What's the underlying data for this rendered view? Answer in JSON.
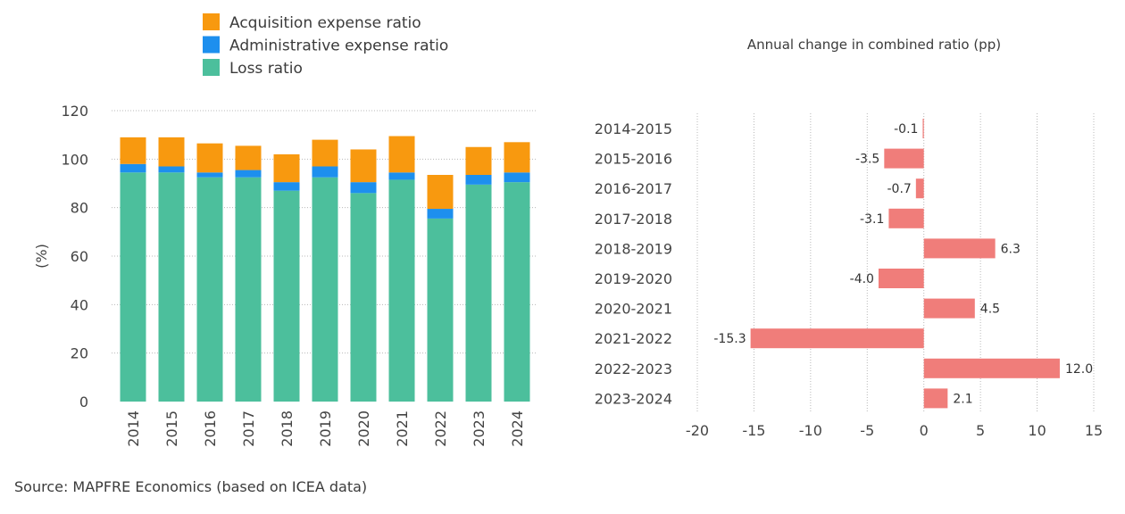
{
  "source_note": "Source: MAPFRE Economics (based on ICEA data)",
  "colors": {
    "acquisition": "#F8990F",
    "administrative": "#1D8FEE",
    "loss": "#4CBF9C",
    "change_bar": "#F07D7A"
  },
  "chart_data": [
    {
      "type": "bar",
      "stacked": true,
      "title": "",
      "xlabel": "",
      "ylabel": "(%)",
      "ylim": [
        0,
        120
      ],
      "yticks": [
        "0",
        "20",
        "40",
        "60",
        "80",
        "100",
        "120"
      ],
      "grid": true,
      "legend_position": "top-left",
      "categories": [
        "2014",
        "2015",
        "2016",
        "2017",
        "2018",
        "2019",
        "2020",
        "2021",
        "2022",
        "2023",
        "2024"
      ],
      "series": [
        {
          "name": "Loss ratio",
          "color_key": "loss",
          "values": [
            94.5,
            94.5,
            92.5,
            92.5,
            87,
            92.5,
            86,
            91.5,
            75.5,
            89.5,
            90.5
          ]
        },
        {
          "name": "Administrative expense ratio",
          "color_key": "administrative",
          "values": [
            3.5,
            2.5,
            2,
            3,
            3.5,
            4.5,
            4.5,
            3,
            4,
            4,
            4
          ]
        },
        {
          "name": "Acquisition expense ratio",
          "color_key": "acquisition",
          "values": [
            11,
            12,
            12,
            10,
            11.5,
            11,
            13.5,
            15,
            14,
            11.5,
            12.5
          ]
        }
      ],
      "legend_order": [
        "Acquisition expense ratio",
        "Administrative expense ratio",
        "Loss ratio"
      ]
    },
    {
      "type": "bar",
      "orientation": "horizontal",
      "title": "Annual change in combined ratio (pp)",
      "xlabel": "",
      "ylabel": "",
      "xlim": [
        -20,
        15
      ],
      "xticks": [
        "-20",
        "-15",
        "-10",
        "-5",
        "0",
        "5",
        "10",
        "15"
      ],
      "grid": true,
      "categories": [
        "2014-2015",
        "2015-2016",
        "2016-2017",
        "2017-2018",
        "2018-2019",
        "2019-2020",
        "2020-2021",
        "2021-2022",
        "2022-2023",
        "2023-2024"
      ],
      "values": [
        -0.1,
        -3.5,
        -0.7,
        -3.1,
        6.3,
        -4.0,
        4.5,
        -15.3,
        12.0,
        2.1
      ],
      "labels": [
        "-0.1",
        "-3.5",
        "-0.7",
        "-3.1",
        "6.3",
        "-4.0",
        "4.5",
        "-15.3",
        "12.0",
        "2.1"
      ]
    }
  ]
}
